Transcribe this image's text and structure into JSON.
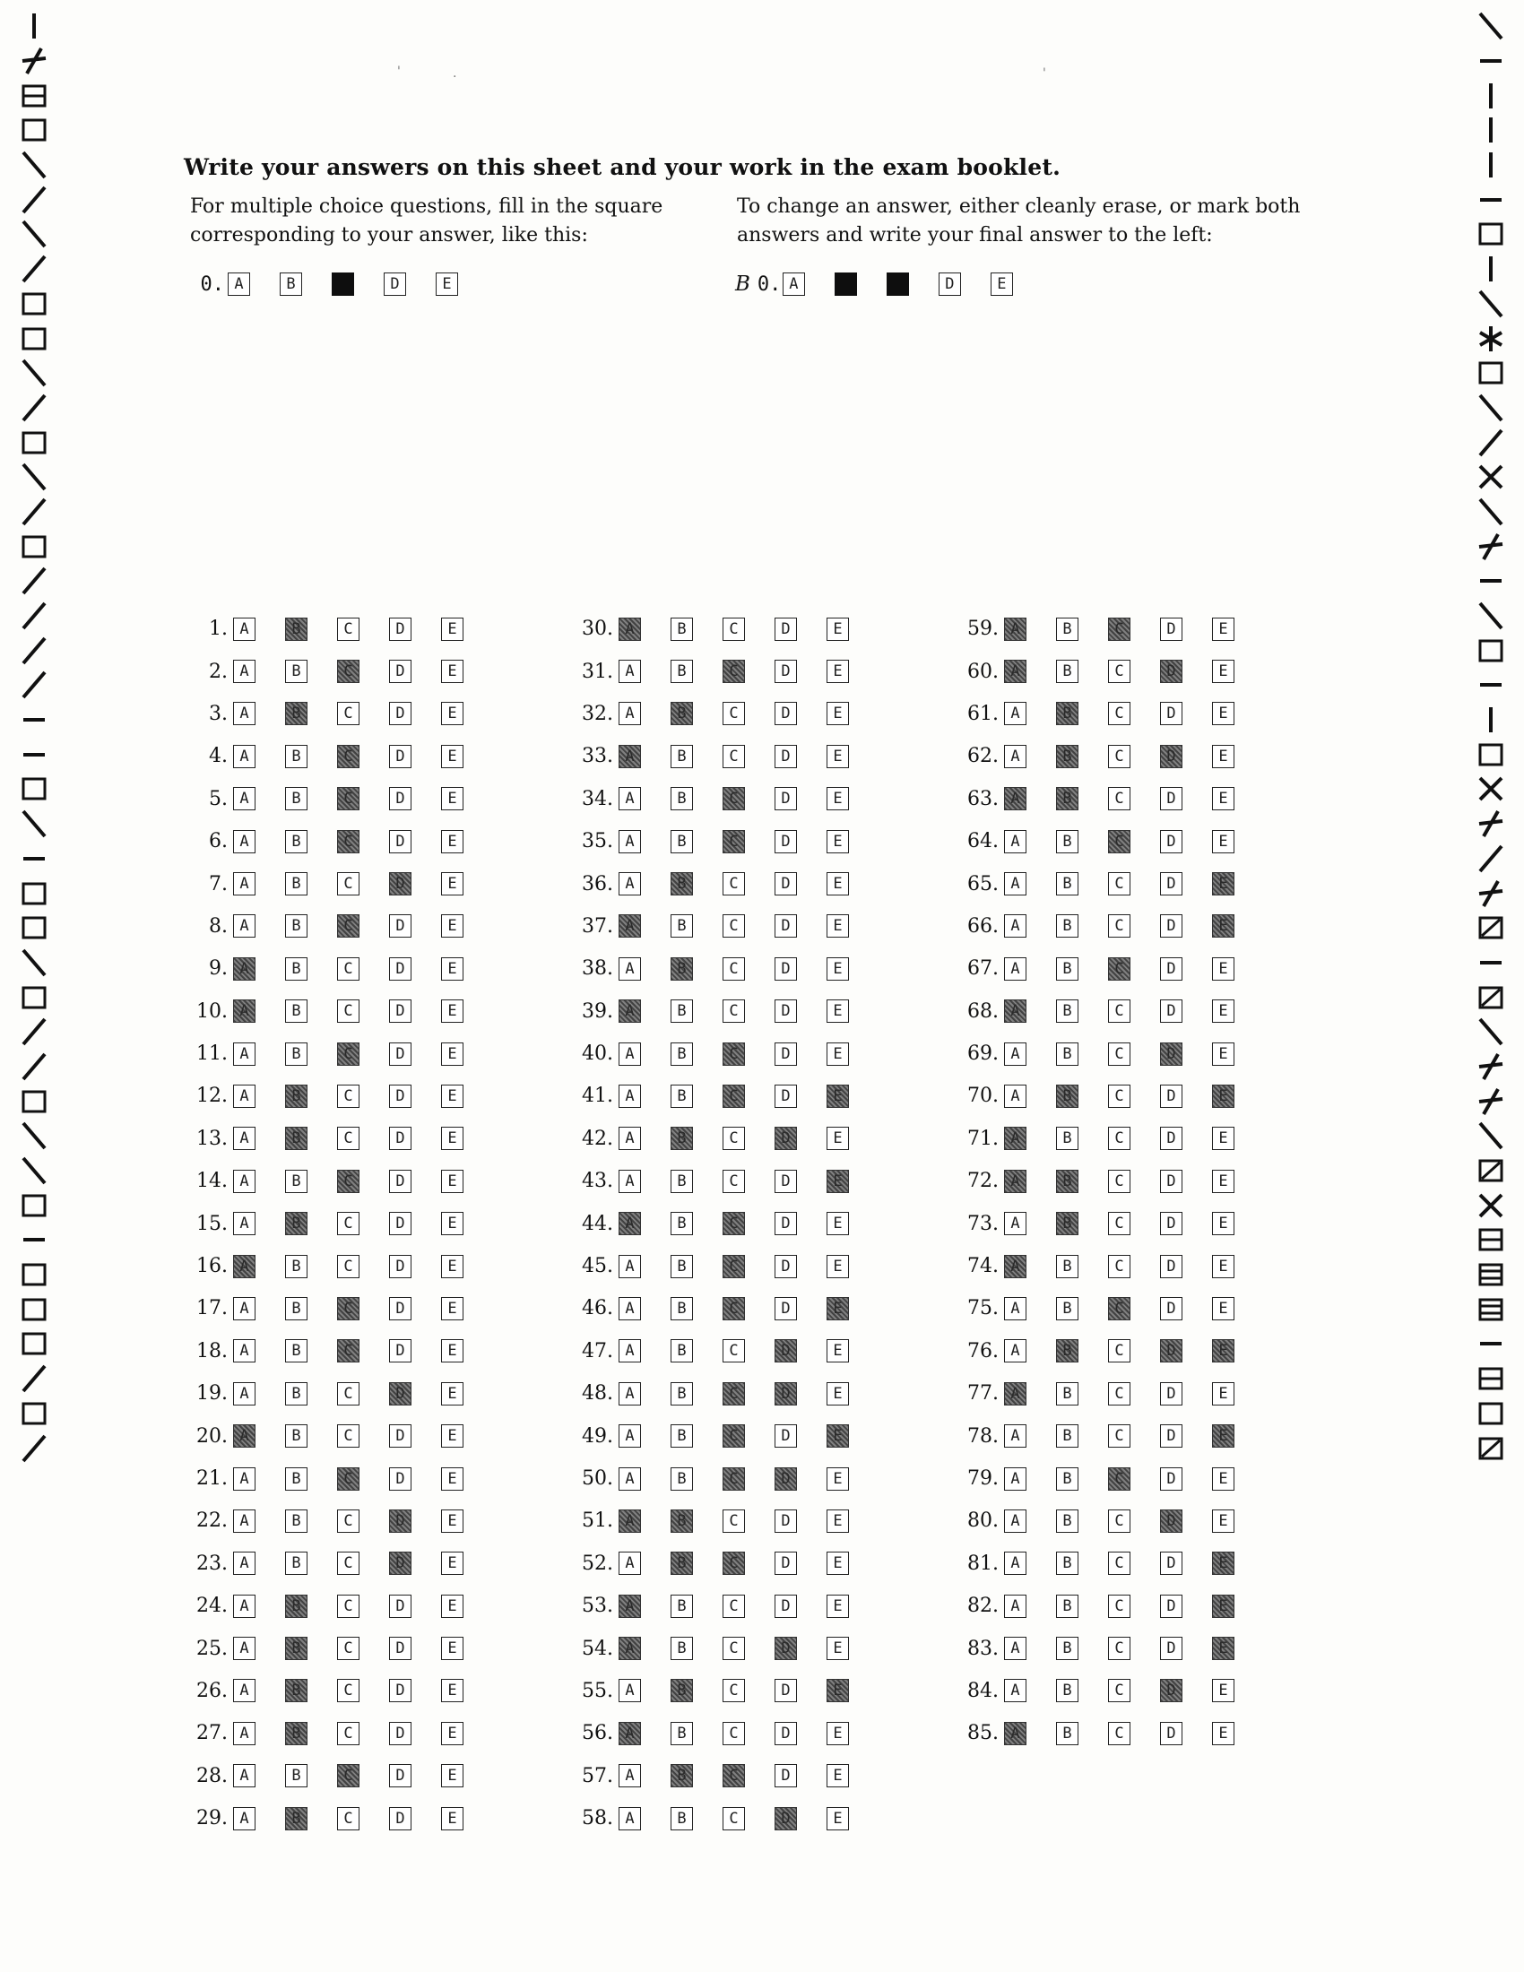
{
  "header": {
    "title": "Write your answers on this sheet and your work in the exam booklet.",
    "left_instruction": "For multiple choice questions, fill in the square corresponding to your answer, like this:",
    "right_instruction": "To change an answer, either cleanly erase, or mark both answers and write your final answer to the left:"
  },
  "examples": {
    "fill_example": {
      "number": "0.",
      "choices": [
        "A",
        "B",
        "C",
        "D",
        "E"
      ],
      "filled": [
        "C"
      ]
    },
    "change_example": {
      "final_answer": "B",
      "number": "0.",
      "choices": [
        "A",
        "B",
        "C",
        "D",
        "E"
      ],
      "filled": [
        "B",
        "C"
      ]
    }
  },
  "choice_letters": [
    "A",
    "B",
    "C",
    "D",
    "E"
  ],
  "questions": [
    {
      "number": "1.",
      "filled": [
        "B"
      ]
    },
    {
      "number": "2.",
      "filled": [
        "C"
      ]
    },
    {
      "number": "3.",
      "filled": [
        "B"
      ]
    },
    {
      "number": "4.",
      "filled": [
        "C"
      ]
    },
    {
      "number": "5.",
      "filled": [
        "C"
      ]
    },
    {
      "number": "6.",
      "filled": [
        "C"
      ]
    },
    {
      "number": "7.",
      "filled": [
        "D"
      ]
    },
    {
      "number": "8.",
      "filled": [
        "C"
      ]
    },
    {
      "number": "9.",
      "filled": [
        "A"
      ]
    },
    {
      "number": "10.",
      "filled": [
        "A"
      ]
    },
    {
      "number": "11.",
      "filled": [
        "C"
      ]
    },
    {
      "number": "12.",
      "filled": [
        "B"
      ]
    },
    {
      "number": "13.",
      "filled": [
        "B"
      ]
    },
    {
      "number": "14.",
      "filled": [
        "C"
      ]
    },
    {
      "number": "15.",
      "filled": [
        "B"
      ]
    },
    {
      "number": "16.",
      "filled": [
        "A"
      ]
    },
    {
      "number": "17.",
      "filled": [
        "C"
      ]
    },
    {
      "number": "18.",
      "filled": [
        "C"
      ]
    },
    {
      "number": "19.",
      "filled": [
        "D"
      ]
    },
    {
      "number": "20.",
      "filled": [
        "A"
      ]
    },
    {
      "number": "21.",
      "filled": [
        "C"
      ]
    },
    {
      "number": "22.",
      "filled": [
        "D"
      ]
    },
    {
      "number": "23.",
      "filled": [
        "D"
      ]
    },
    {
      "number": "24.",
      "filled": [
        "B"
      ]
    },
    {
      "number": "25.",
      "filled": [
        "B"
      ]
    },
    {
      "number": "26.",
      "filled": [
        "B"
      ]
    },
    {
      "number": "27.",
      "filled": [
        "B"
      ]
    },
    {
      "number": "28.",
      "filled": [
        "C"
      ]
    },
    {
      "number": "29.",
      "filled": [
        "B"
      ]
    },
    {
      "number": "30.",
      "filled": [
        "A"
      ]
    },
    {
      "number": "31.",
      "filled": [
        "C"
      ]
    },
    {
      "number": "32.",
      "filled": [
        "B"
      ]
    },
    {
      "number": "33.",
      "filled": [
        "A"
      ]
    },
    {
      "number": "34.",
      "filled": [
        "C"
      ]
    },
    {
      "number": "35.",
      "filled": [
        "C"
      ]
    },
    {
      "number": "36.",
      "filled": [
        "B"
      ]
    },
    {
      "number": "37.",
      "filled": [
        "A"
      ]
    },
    {
      "number": "38.",
      "filled": [
        "B"
      ]
    },
    {
      "number": "39.",
      "filled": [
        "A"
      ]
    },
    {
      "number": "40.",
      "filled": [
        "C"
      ]
    },
    {
      "number": "41.",
      "filled": [
        "C",
        "E"
      ]
    },
    {
      "number": "42.",
      "filled": [
        "B",
        "D"
      ]
    },
    {
      "number": "43.",
      "filled": [
        "E"
      ]
    },
    {
      "number": "44.",
      "filled": [
        "A",
        "C"
      ]
    },
    {
      "number": "45.",
      "filled": [
        "C"
      ]
    },
    {
      "number": "46.",
      "filled": [
        "C",
        "E"
      ]
    },
    {
      "number": "47.",
      "filled": [
        "D"
      ]
    },
    {
      "number": "48.",
      "filled": [
        "C",
        "D"
      ]
    },
    {
      "number": "49.",
      "filled": [
        "C",
        "E"
      ]
    },
    {
      "number": "50.",
      "filled": [
        "C",
        "D"
      ]
    },
    {
      "number": "51.",
      "filled": [
        "A",
        "B"
      ]
    },
    {
      "number": "52.",
      "filled": [
        "B",
        "C"
      ]
    },
    {
      "number": "53.",
      "filled": [
        "A"
      ]
    },
    {
      "number": "54.",
      "filled": [
        "A",
        "D"
      ]
    },
    {
      "number": "55.",
      "filled": [
        "B",
        "E"
      ]
    },
    {
      "number": "56.",
      "filled": [
        "A"
      ]
    },
    {
      "number": "57.",
      "filled": [
        "B",
        "C"
      ]
    },
    {
      "number": "58.",
      "filled": [
        "D"
      ]
    },
    {
      "number": "59.",
      "filled": [
        "A",
        "C"
      ]
    },
    {
      "number": "60.",
      "filled": [
        "A",
        "D"
      ]
    },
    {
      "number": "61.",
      "filled": [
        "B"
      ]
    },
    {
      "number": "62.",
      "filled": [
        "B",
        "D"
      ]
    },
    {
      "number": "63.",
      "filled": [
        "A",
        "B"
      ]
    },
    {
      "number": "64.",
      "filled": [
        "C"
      ]
    },
    {
      "number": "65.",
      "filled": [
        "E"
      ]
    },
    {
      "number": "66.",
      "filled": [
        "E"
      ]
    },
    {
      "number": "67.",
      "filled": [
        "C"
      ]
    },
    {
      "number": "68.",
      "filled": [
        "A"
      ]
    },
    {
      "number": "69.",
      "filled": [
        "D"
      ]
    },
    {
      "number": "70.",
      "filled": [
        "B",
        "E"
      ]
    },
    {
      "number": "71.",
      "filled": [
        "A"
      ]
    },
    {
      "number": "72.",
      "filled": [
        "A",
        "B"
      ]
    },
    {
      "number": "73.",
      "filled": [
        "B"
      ]
    },
    {
      "number": "74.",
      "filled": [
        "A"
      ]
    },
    {
      "number": "75.",
      "filled": [
        "C"
      ]
    },
    {
      "number": "76.",
      "filled": [
        "B",
        "D",
        "E"
      ]
    },
    {
      "number": "77.",
      "filled": [
        "A"
      ]
    },
    {
      "number": "78.",
      "filled": [
        "E"
      ]
    },
    {
      "number": "79.",
      "filled": [
        "C"
      ]
    },
    {
      "number": "80.",
      "filled": [
        "D"
      ]
    },
    {
      "number": "81.",
      "filled": [
        "E"
      ]
    },
    {
      "number": "82.",
      "filled": [
        "E"
      ]
    },
    {
      "number": "83.",
      "filled": [
        "E"
      ]
    },
    {
      "number": "84.",
      "filled": [
        "D"
      ]
    },
    {
      "number": "85.",
      "filled": [
        "A"
      ]
    }
  ],
  "side_marks": {
    "left": [
      "bar",
      "tick-cross",
      "box-h",
      "box",
      "backslash",
      "slash",
      "backslash",
      "slash",
      "box",
      "box",
      "backslash",
      "slash",
      "box",
      "backslash",
      "slash",
      "box",
      "slash",
      "slash",
      "slash",
      "slash",
      "dash",
      "dash",
      "box",
      "backslash",
      "dash",
      "box",
      "box",
      "backslash",
      "box",
      "slash",
      "slash",
      "box",
      "backslash",
      "backslash",
      "box",
      "dash",
      "box",
      "box",
      "box",
      "slash",
      "box",
      "slash"
    ],
    "right": [
      "backslash",
      "dash",
      "bar",
      "bar",
      "bar",
      "dash",
      "box",
      "bar",
      "backslash",
      "star",
      "box",
      "backslash",
      "slash",
      "x",
      "backslash",
      "tick-cross",
      "dash",
      "backslash",
      "box",
      "dash",
      "bar",
      "box",
      "x",
      "tick-cross",
      "slash",
      "tick-cross",
      "box-slash",
      "dash",
      "box-slash",
      "backslash",
      "tick-cross",
      "tick-cross",
      "backslash",
      "box-slash",
      "x",
      "box-h",
      "box-h2",
      "box-h2",
      "dash",
      "box-h",
      "box",
      "box-slash"
    ]
  }
}
